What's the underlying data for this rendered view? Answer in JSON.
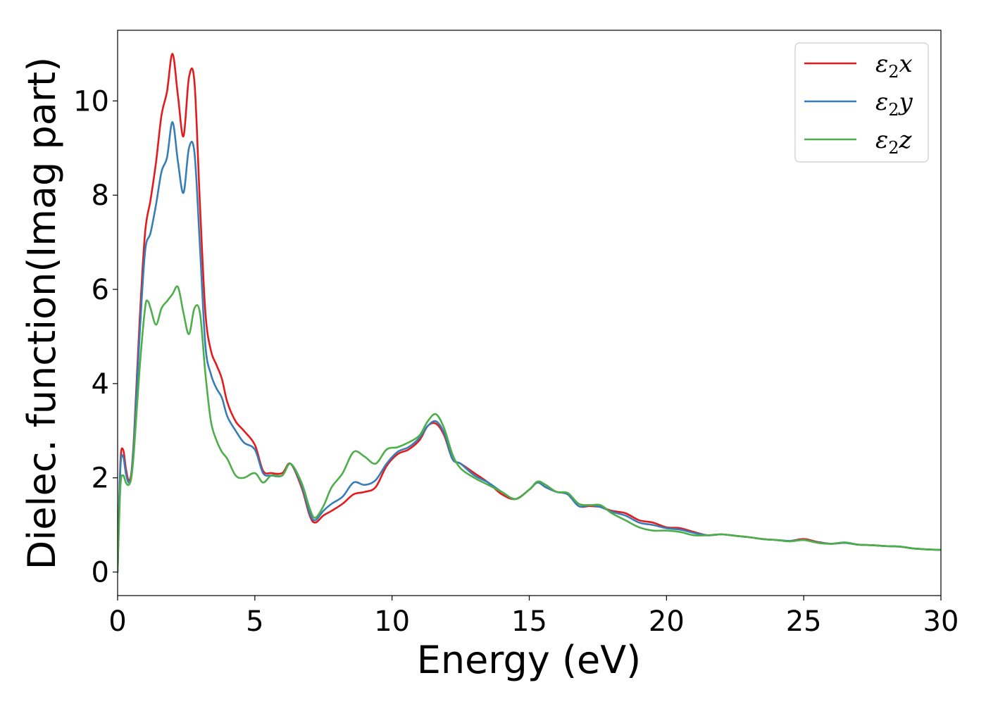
{
  "chart_data": {
    "type": "line",
    "title": "",
    "xlabel": "Energy (eV)",
    "ylabel": "Dielec. function(Imag part)",
    "xlim": [
      0,
      30
    ],
    "ylim": [
      -0.5,
      11.5
    ],
    "xticks": [
      0,
      5,
      10,
      15,
      20,
      25,
      30
    ],
    "xtick_labels": [
      "0",
      "5",
      "10",
      "15",
      "20",
      "25",
      "30"
    ],
    "yticks": [
      0,
      2,
      4,
      6,
      8,
      10
    ],
    "ytick_labels": [
      "0",
      "2",
      "4",
      "6",
      "8",
      "10"
    ],
    "grid": false,
    "legend_position": "upper right",
    "series": [
      {
        "name": "ε₂x",
        "legend_main": "ε",
        "legend_sub": "2",
        "legend_suffix": "x",
        "color": "#e41a1c",
        "x": [
          0,
          0.1,
          0.2,
          0.3,
          0.4,
          0.5,
          0.6,
          0.8,
          1.0,
          1.2,
          1.4,
          1.6,
          1.8,
          2.0,
          2.2,
          2.4,
          2.6,
          2.8,
          3.0,
          3.2,
          3.4,
          3.6,
          3.8,
          4.0,
          4.3,
          4.6,
          5.0,
          5.3,
          5.6,
          6.0,
          6.3,
          6.7,
          7.0,
          7.2,
          7.5,
          7.8,
          8.2,
          8.6,
          9.0,
          9.4,
          9.8,
          10.2,
          10.6,
          11.0,
          11.3,
          11.6,
          11.9,
          12.2,
          12.5,
          13.0,
          13.5,
          14.0,
          14.5,
          15.0,
          15.3,
          15.6,
          16.0,
          16.4,
          16.8,
          17.2,
          17.6,
          18.0,
          18.5,
          19.0,
          19.5,
          20.0,
          20.5,
          21.0,
          21.5,
          22.0,
          22.5,
          23.0,
          23.5,
          24.0,
          24.5,
          25.0,
          25.5,
          26.0,
          26.5,
          27.0,
          27.5,
          28.0,
          28.5,
          29.0,
          29.5,
          30.0
        ],
        "y": [
          0.0,
          2.3,
          2.6,
          2.2,
          1.95,
          2.1,
          2.9,
          5.3,
          7.2,
          7.9,
          8.7,
          9.7,
          10.2,
          11.0,
          10.1,
          9.25,
          10.5,
          10.4,
          7.8,
          5.5,
          4.7,
          4.4,
          4.1,
          3.6,
          3.2,
          3.0,
          2.7,
          2.15,
          2.1,
          2.1,
          2.3,
          1.8,
          1.2,
          1.05,
          1.2,
          1.3,
          1.45,
          1.65,
          1.7,
          1.8,
          2.25,
          2.5,
          2.6,
          2.8,
          3.1,
          3.15,
          2.9,
          2.4,
          2.3,
          2.1,
          1.9,
          1.65,
          1.55,
          1.75,
          1.9,
          1.8,
          1.7,
          1.65,
          1.4,
          1.4,
          1.38,
          1.3,
          1.25,
          1.1,
          1.05,
          0.95,
          0.93,
          0.85,
          0.78,
          0.8,
          0.77,
          0.74,
          0.7,
          0.68,
          0.66,
          0.7,
          0.64,
          0.6,
          0.62,
          0.58,
          0.57,
          0.55,
          0.54,
          0.5,
          0.48,
          0.47
        ]
      },
      {
        "name": "ε₂y",
        "legend_main": "ε",
        "legend_sub": "2",
        "legend_suffix": "y",
        "color": "#377eb8",
        "x": [
          0,
          0.1,
          0.2,
          0.3,
          0.4,
          0.5,
          0.6,
          0.8,
          1.0,
          1.2,
          1.4,
          1.6,
          1.8,
          2.0,
          2.2,
          2.4,
          2.6,
          2.8,
          3.0,
          3.2,
          3.4,
          3.6,
          3.8,
          4.0,
          4.3,
          4.6,
          5.0,
          5.3,
          5.6,
          6.0,
          6.3,
          6.7,
          7.0,
          7.2,
          7.5,
          7.8,
          8.2,
          8.6,
          9.0,
          9.4,
          9.8,
          10.2,
          10.6,
          11.0,
          11.3,
          11.6,
          11.9,
          12.2,
          12.5,
          13.0,
          13.5,
          14.0,
          14.5,
          15.0,
          15.3,
          15.6,
          16.0,
          16.4,
          16.8,
          17.2,
          17.6,
          18.0,
          18.5,
          19.0,
          19.5,
          20.0,
          20.5,
          21.0,
          21.5,
          22.0,
          22.5,
          23.0,
          23.5,
          24.0,
          24.5,
          25.0,
          25.5,
          26.0,
          26.5,
          27.0,
          27.5,
          28.0,
          28.5,
          29.0,
          29.5,
          30.0
        ],
        "y": [
          0.0,
          2.2,
          2.45,
          2.1,
          1.9,
          2.05,
          2.8,
          5.0,
          6.8,
          7.2,
          7.8,
          8.5,
          8.8,
          9.55,
          8.7,
          8.05,
          9.0,
          8.9,
          6.9,
          4.8,
          4.2,
          3.9,
          3.7,
          3.3,
          3.0,
          2.75,
          2.6,
          2.1,
          2.05,
          2.05,
          2.3,
          1.85,
          1.25,
          1.1,
          1.3,
          1.45,
          1.6,
          1.9,
          1.85,
          1.95,
          2.3,
          2.55,
          2.65,
          2.85,
          3.1,
          3.2,
          2.95,
          2.4,
          2.3,
          2.05,
          1.9,
          1.7,
          1.55,
          1.75,
          1.9,
          1.8,
          1.7,
          1.65,
          1.4,
          1.42,
          1.38,
          1.28,
          1.2,
          1.05,
          1.0,
          0.93,
          0.9,
          0.83,
          0.78,
          0.8,
          0.77,
          0.74,
          0.7,
          0.68,
          0.66,
          0.68,
          0.63,
          0.6,
          0.62,
          0.58,
          0.57,
          0.55,
          0.54,
          0.5,
          0.48,
          0.47
        ]
      },
      {
        "name": "ε₂z",
        "legend_main": "ε",
        "legend_sub": "2",
        "legend_suffix": "z",
        "color": "#4daf4a",
        "x": [
          0,
          0.1,
          0.2,
          0.3,
          0.4,
          0.5,
          0.6,
          0.8,
          1.0,
          1.1,
          1.2,
          1.4,
          1.6,
          1.8,
          2.0,
          2.2,
          2.4,
          2.6,
          2.8,
          3.0,
          3.2,
          3.4,
          3.6,
          3.8,
          4.0,
          4.3,
          4.6,
          5.0,
          5.3,
          5.6,
          6.0,
          6.3,
          6.7,
          7.0,
          7.2,
          7.5,
          7.8,
          8.2,
          8.6,
          9.0,
          9.4,
          9.8,
          10.2,
          10.6,
          11.0,
          11.3,
          11.6,
          11.9,
          12.2,
          12.5,
          13.0,
          13.5,
          14.0,
          14.5,
          15.0,
          15.3,
          15.6,
          16.0,
          16.4,
          16.8,
          17.2,
          17.6,
          18.0,
          18.5,
          19.0,
          19.5,
          20.0,
          20.5,
          21.0,
          21.5,
          22.0,
          22.5,
          23.0,
          23.5,
          24.0,
          24.5,
          25.0,
          25.5,
          26.0,
          26.5,
          27.0,
          27.5,
          28.0,
          28.5,
          29.0,
          29.5,
          30.0
        ],
        "y": [
          0.0,
          1.8,
          2.05,
          1.9,
          1.85,
          2.0,
          2.6,
          4.3,
          5.6,
          5.75,
          5.6,
          5.25,
          5.6,
          5.75,
          5.9,
          6.05,
          5.5,
          5.05,
          5.6,
          5.5,
          4.2,
          3.2,
          2.8,
          2.55,
          2.4,
          2.05,
          2.0,
          2.1,
          1.9,
          2.05,
          2.05,
          2.3,
          1.9,
          1.35,
          1.15,
          1.4,
          1.8,
          2.1,
          2.55,
          2.45,
          2.3,
          2.6,
          2.65,
          2.75,
          2.9,
          3.2,
          3.35,
          3.05,
          2.5,
          2.2,
          2.0,
          1.85,
          1.7,
          1.55,
          1.75,
          1.92,
          1.85,
          1.7,
          1.68,
          1.45,
          1.42,
          1.42,
          1.25,
          1.1,
          0.95,
          0.88,
          0.88,
          0.85,
          0.78,
          0.78,
          0.8,
          0.77,
          0.74,
          0.7,
          0.68,
          0.65,
          0.68,
          0.62,
          0.6,
          0.63,
          0.58,
          0.57,
          0.55,
          0.54,
          0.5,
          0.48,
          0.47
        ]
      }
    ]
  }
}
